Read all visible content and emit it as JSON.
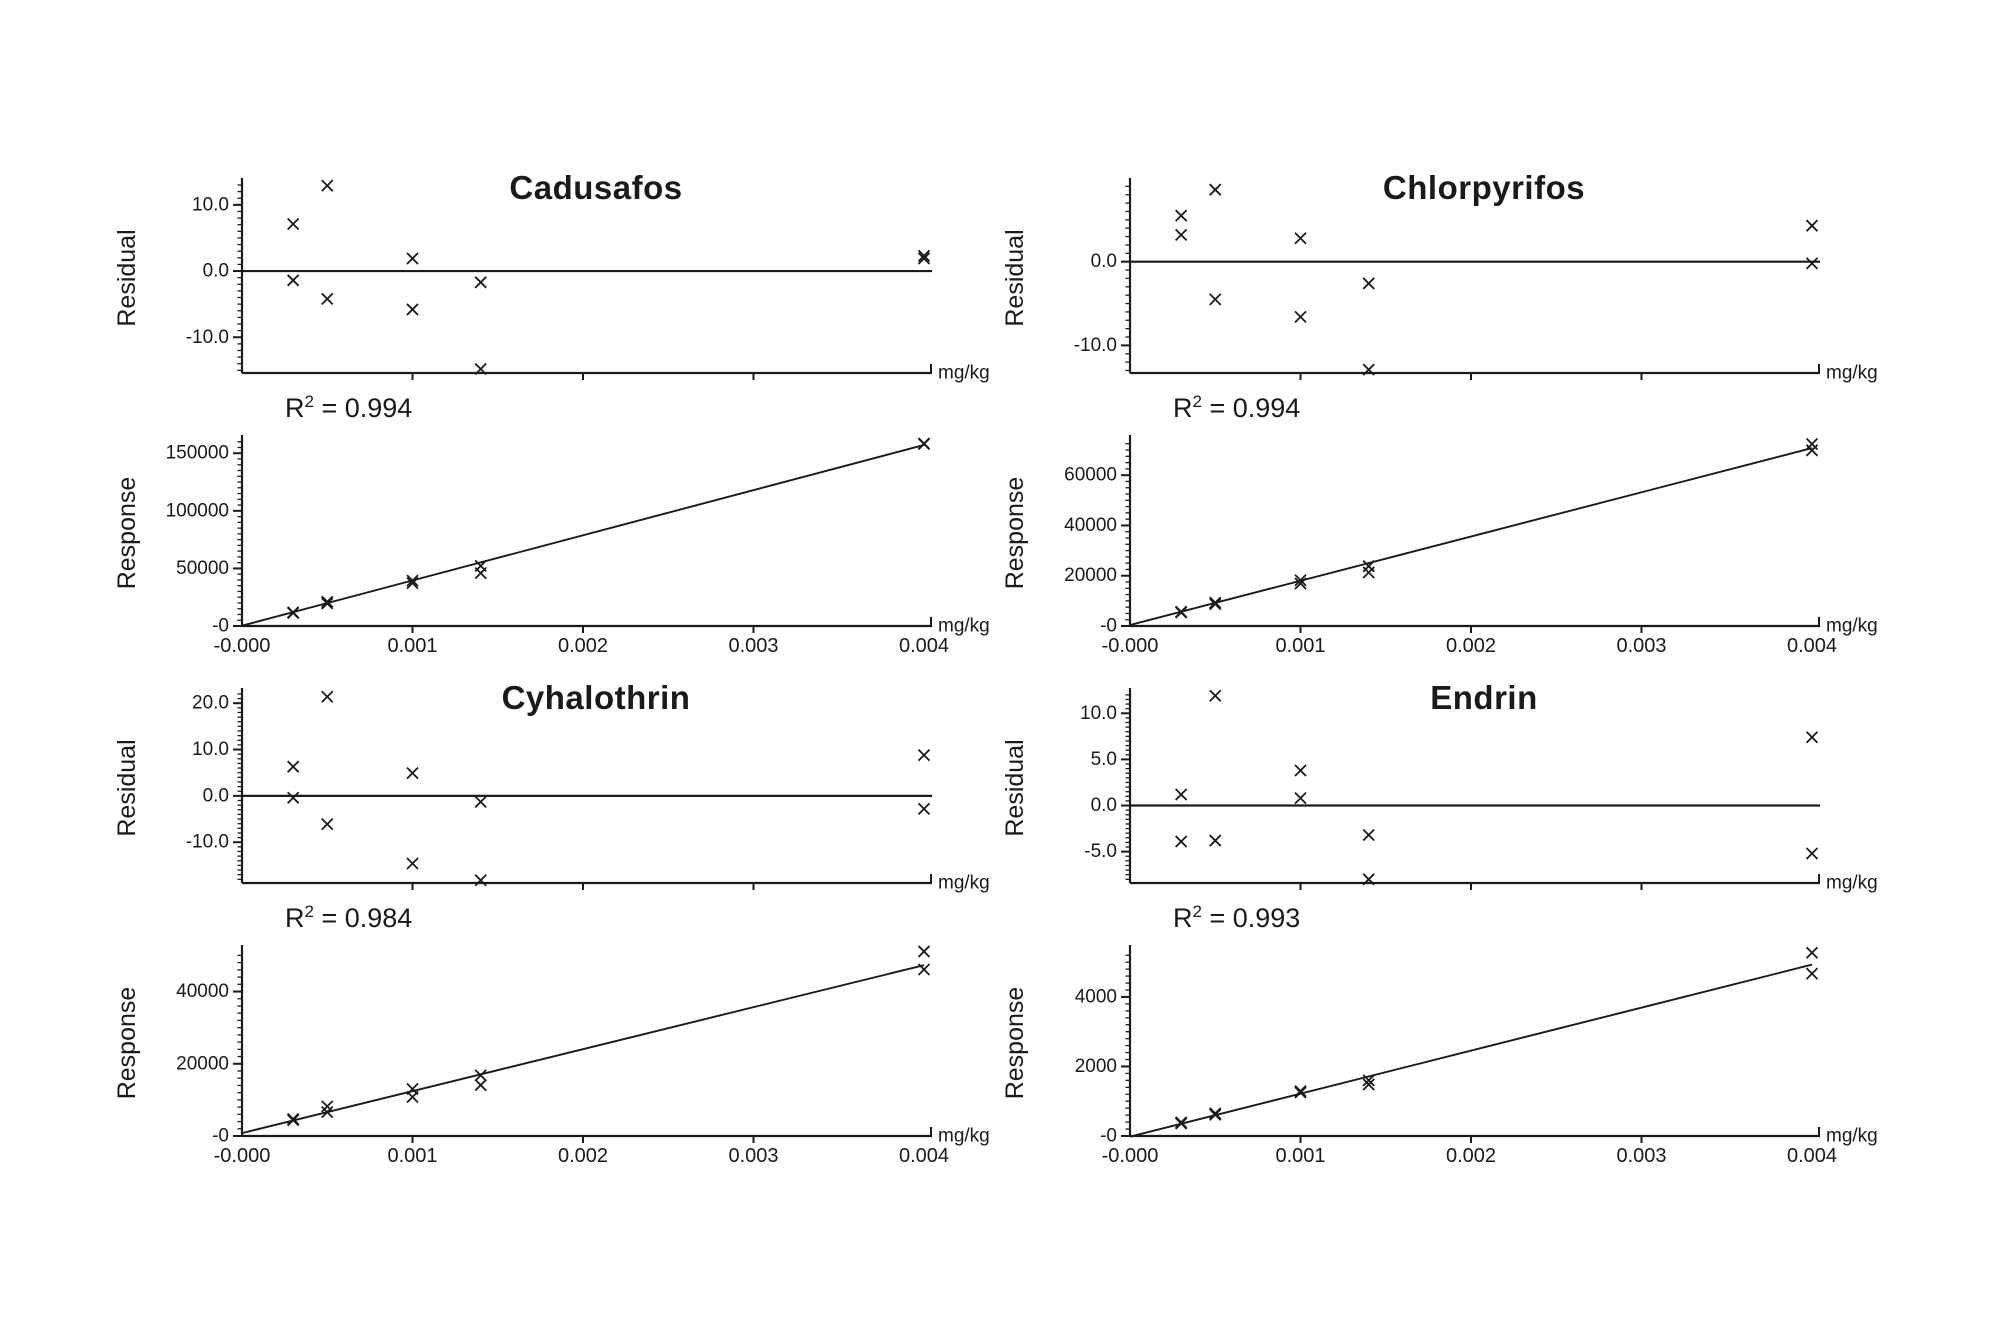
{
  "colors": {
    "ink": "#1a1a1a",
    "background": "#ffffff"
  },
  "chart_data": [
    {
      "panel": "Cadusafos",
      "r2": {
        "base": "R",
        "sup": "2",
        "rest": " = 0.994"
      },
      "residual": {
        "type": "scatter",
        "ylabel": "Residual",
        "xlabel": "mg/kg",
        "ylim": [
          -15.4,
          13.3
        ],
        "minor_step": 1,
        "yticks": [
          {
            "v": 10,
            "label": "10.0"
          },
          {
            "v": 0,
            "label": "0.0"
          },
          {
            "v": -10,
            "label": "-10.0"
          }
        ],
        "xlim": [
          0,
          0.004
        ],
        "xticks": [
          0.001,
          0.002,
          0.003
        ],
        "zero_line": 0,
        "points": [
          [
            0.0003,
            7.1
          ],
          [
            0.0003,
            -1.4
          ],
          [
            0.0005,
            12.9
          ],
          [
            0.0005,
            -4.2
          ],
          [
            0.001,
            1.9
          ],
          [
            0.001,
            -5.8
          ],
          [
            0.0014,
            -1.7
          ],
          [
            0.0014,
            -14.8
          ],
          [
            0.004,
            2.3
          ],
          [
            0.004,
            1.9
          ]
        ]
      },
      "response": {
        "type": "scatter_with_fit",
        "ylabel": "Response",
        "xlabel": "mg/kg",
        "ylim": [
          0,
          161500
        ],
        "minor_step": 5000,
        "yticks": [
          {
            "v": 0,
            "label": "-0"
          },
          {
            "v": 50000,
            "label": "50000"
          },
          {
            "v": 100000,
            "label": "100000"
          },
          {
            "v": 150000,
            "label": "150000"
          }
        ],
        "xlim": [
          0,
          0.004
        ],
        "xticks": [
          {
            "v": 0,
            "label": "-0.000"
          },
          {
            "v": 0.001,
            "label": "0.001"
          },
          {
            "v": 0.002,
            "label": "0.002"
          },
          {
            "v": 0.003,
            "label": "0.003"
          },
          {
            "v": 0.004,
            "label": "0.004"
          }
        ],
        "fit_line": [
          [
            0,
            300
          ],
          [
            0.004,
            157200
          ]
        ],
        "points": [
          [
            0.0003,
            11800
          ],
          [
            0.0003,
            11300
          ],
          [
            0.0005,
            21000
          ],
          [
            0.0005,
            19600
          ],
          [
            0.001,
            39400
          ],
          [
            0.001,
            37200
          ],
          [
            0.0014,
            52200
          ],
          [
            0.0014,
            45900
          ],
          [
            0.004,
            158500
          ],
          [
            0.004,
            158000
          ]
        ]
      }
    },
    {
      "panel": "Chlorpyrifos",
      "r2": {
        "base": "R",
        "sup": "2",
        "rest": " = 0.994"
      },
      "residual": {
        "type": "scatter",
        "ylabel": "Residual",
        "xlabel": "mg/kg",
        "ylim": [
          -13.3,
          9.4
        ],
        "minor_step": 1,
        "yticks": [
          {
            "v": 0,
            "label": "0.0"
          },
          {
            "v": -10,
            "label": "-10.0"
          }
        ],
        "xlim": [
          0,
          0.004
        ],
        "xticks": [
          0.001,
          0.002,
          0.003
        ],
        "zero_line": 0,
        "points": [
          [
            0.0003,
            5.5
          ],
          [
            0.0003,
            3.2
          ],
          [
            0.0005,
            8.6
          ],
          [
            0.0005,
            -4.5
          ],
          [
            0.001,
            2.8
          ],
          [
            0.001,
            -6.6
          ],
          [
            0.0014,
            -2.6
          ],
          [
            0.0014,
            -12.9
          ],
          [
            0.004,
            4.3
          ],
          [
            0.004,
            -0.2
          ]
        ]
      },
      "response": {
        "type": "scatter_with_fit",
        "ylabel": "Response",
        "xlabel": "mg/kg",
        "ylim": [
          0,
          74000
        ],
        "minor_step": 2500,
        "yticks": [
          {
            "v": 0,
            "label": "-0"
          },
          {
            "v": 20000,
            "label": "20000"
          },
          {
            "v": 40000,
            "label": "40000"
          },
          {
            "v": 60000,
            "label": "60000"
          }
        ],
        "xlim": [
          0,
          0.004
        ],
        "xticks": [
          {
            "v": 0,
            "label": "-0.000"
          },
          {
            "v": 0.001,
            "label": "0.001"
          },
          {
            "v": 0.002,
            "label": "0.002"
          },
          {
            "v": 0.003,
            "label": "0.003"
          },
          {
            "v": 0.004,
            "label": "0.004"
          }
        ],
        "fit_line": [
          [
            0,
            400
          ],
          [
            0.004,
            70800
          ]
        ],
        "points": [
          [
            0.0003,
            5650
          ],
          [
            0.0003,
            5400
          ],
          [
            0.0005,
            9300
          ],
          [
            0.0005,
            8700
          ],
          [
            0.001,
            18200
          ],
          [
            0.001,
            16900
          ],
          [
            0.0014,
            23800
          ],
          [
            0.0014,
            21300
          ],
          [
            0.004,
            72400
          ],
          [
            0.004,
            69900
          ]
        ]
      }
    },
    {
      "panel": "Cyhalothrin",
      "r2": {
        "base": "R",
        "sup": "2",
        "rest": " = 0.984"
      },
      "residual": {
        "type": "scatter",
        "ylabel": "Residual",
        "xlabel": "mg/kg",
        "ylim": [
          -18.8,
          22.2
        ],
        "minor_step": 1,
        "yticks": [
          {
            "v": 20,
            "label": "20.0"
          },
          {
            "v": 10,
            "label": "10.0"
          },
          {
            "v": 0,
            "label": "0.0"
          },
          {
            "v": -10,
            "label": "-10.0"
          }
        ],
        "xlim": [
          0,
          0.004
        ],
        "xticks": [
          0.001,
          0.002,
          0.003
        ],
        "zero_line": 0,
        "points": [
          [
            0.0003,
            6.3
          ],
          [
            0.0003,
            -0.4
          ],
          [
            0.0005,
            21.4
          ],
          [
            0.0005,
            -6.1
          ],
          [
            0.001,
            4.9
          ],
          [
            0.001,
            -14.6
          ],
          [
            0.0014,
            -1.3
          ],
          [
            0.0014,
            -18.2
          ],
          [
            0.004,
            8.8
          ],
          [
            0.004,
            -2.8
          ]
        ]
      },
      "response": {
        "type": "scatter_with_fit",
        "ylabel": "Response",
        "xlabel": "mg/kg",
        "ylim": [
          0,
          51500
        ],
        "minor_step": 2000,
        "yticks": [
          {
            "v": 0,
            "label": "-0"
          },
          {
            "v": 20000,
            "label": "20000"
          },
          {
            "v": 40000,
            "label": "40000"
          }
        ],
        "xlim": [
          0,
          0.004
        ],
        "xticks": [
          {
            "v": 0,
            "label": "-0.000"
          },
          {
            "v": 0.001,
            "label": "0.001"
          },
          {
            "v": 0.002,
            "label": "0.002"
          },
          {
            "v": 0.003,
            "label": "0.003"
          },
          {
            "v": 0.004,
            "label": "0.004"
          }
        ],
        "fit_line": [
          [
            0,
            800
          ],
          [
            0.004,
            47300
          ]
        ],
        "points": [
          [
            0.0003,
            4700
          ],
          [
            0.0003,
            4400
          ],
          [
            0.0005,
            8200
          ],
          [
            0.0005,
            6600
          ],
          [
            0.001,
            13000
          ],
          [
            0.001,
            10800
          ],
          [
            0.0014,
            16800
          ],
          [
            0.0014,
            14100
          ],
          [
            0.004,
            51100
          ],
          [
            0.004,
            46100
          ]
        ]
      }
    },
    {
      "panel": "Endrin",
      "r2": {
        "base": "R",
        "sup": "2",
        "rest": " = 0.993"
      },
      "residual": {
        "type": "scatter",
        "ylabel": "Residual",
        "xlabel": "mg/kg",
        "ylim": [
          -8.4,
          12.2
        ],
        "minor_step": 0.5,
        "yticks": [
          {
            "v": 10,
            "label": "10.0"
          },
          {
            "v": 5,
            "label": "5.0"
          },
          {
            "v": 0,
            "label": "0.0"
          },
          {
            "v": -5,
            "label": "-5.0"
          }
        ],
        "xlim": [
          0,
          0.004
        ],
        "xticks": [
          0.001,
          0.002,
          0.003
        ],
        "zero_line": 0,
        "points": [
          [
            0.0003,
            1.2
          ],
          [
            0.0003,
            -3.9
          ],
          [
            0.0005,
            11.9
          ],
          [
            0.0005,
            -3.8
          ],
          [
            0.001,
            3.8
          ],
          [
            0.001,
            0.8
          ],
          [
            0.0014,
            -3.2
          ],
          [
            0.0014,
            -8.0
          ],
          [
            0.004,
            7.4
          ],
          [
            0.004,
            -5.2
          ]
        ]
      },
      "response": {
        "type": "scatter_with_fit",
        "ylabel": "Response",
        "xlabel": "mg/kg",
        "ylim": [
          0,
          5350
        ],
        "minor_step": 200,
        "yticks": [
          {
            "v": 0,
            "label": "-0"
          },
          {
            "v": 2000,
            "label": "2000"
          },
          {
            "v": 4000,
            "label": "4000"
          }
        ],
        "xlim": [
          0,
          0.004
        ],
        "xticks": [
          {
            "v": 0,
            "label": "-0.000"
          },
          {
            "v": 0.001,
            "label": "0.001"
          },
          {
            "v": 0.002,
            "label": "0.002"
          },
          {
            "v": 0.003,
            "label": "0.003"
          },
          {
            "v": 0.004,
            "label": "0.004"
          }
        ],
        "fit_line": [
          [
            0,
            -20
          ],
          [
            0.004,
            4930
          ]
        ],
        "points": [
          [
            0.0003,
            390
          ],
          [
            0.0003,
            360
          ],
          [
            0.0005,
            650
          ],
          [
            0.0005,
            610
          ],
          [
            0.001,
            1290
          ],
          [
            0.001,
            1250
          ],
          [
            0.0014,
            1600
          ],
          [
            0.0014,
            1480
          ],
          [
            0.004,
            5270
          ],
          [
            0.004,
            4670
          ]
        ]
      }
    }
  ]
}
